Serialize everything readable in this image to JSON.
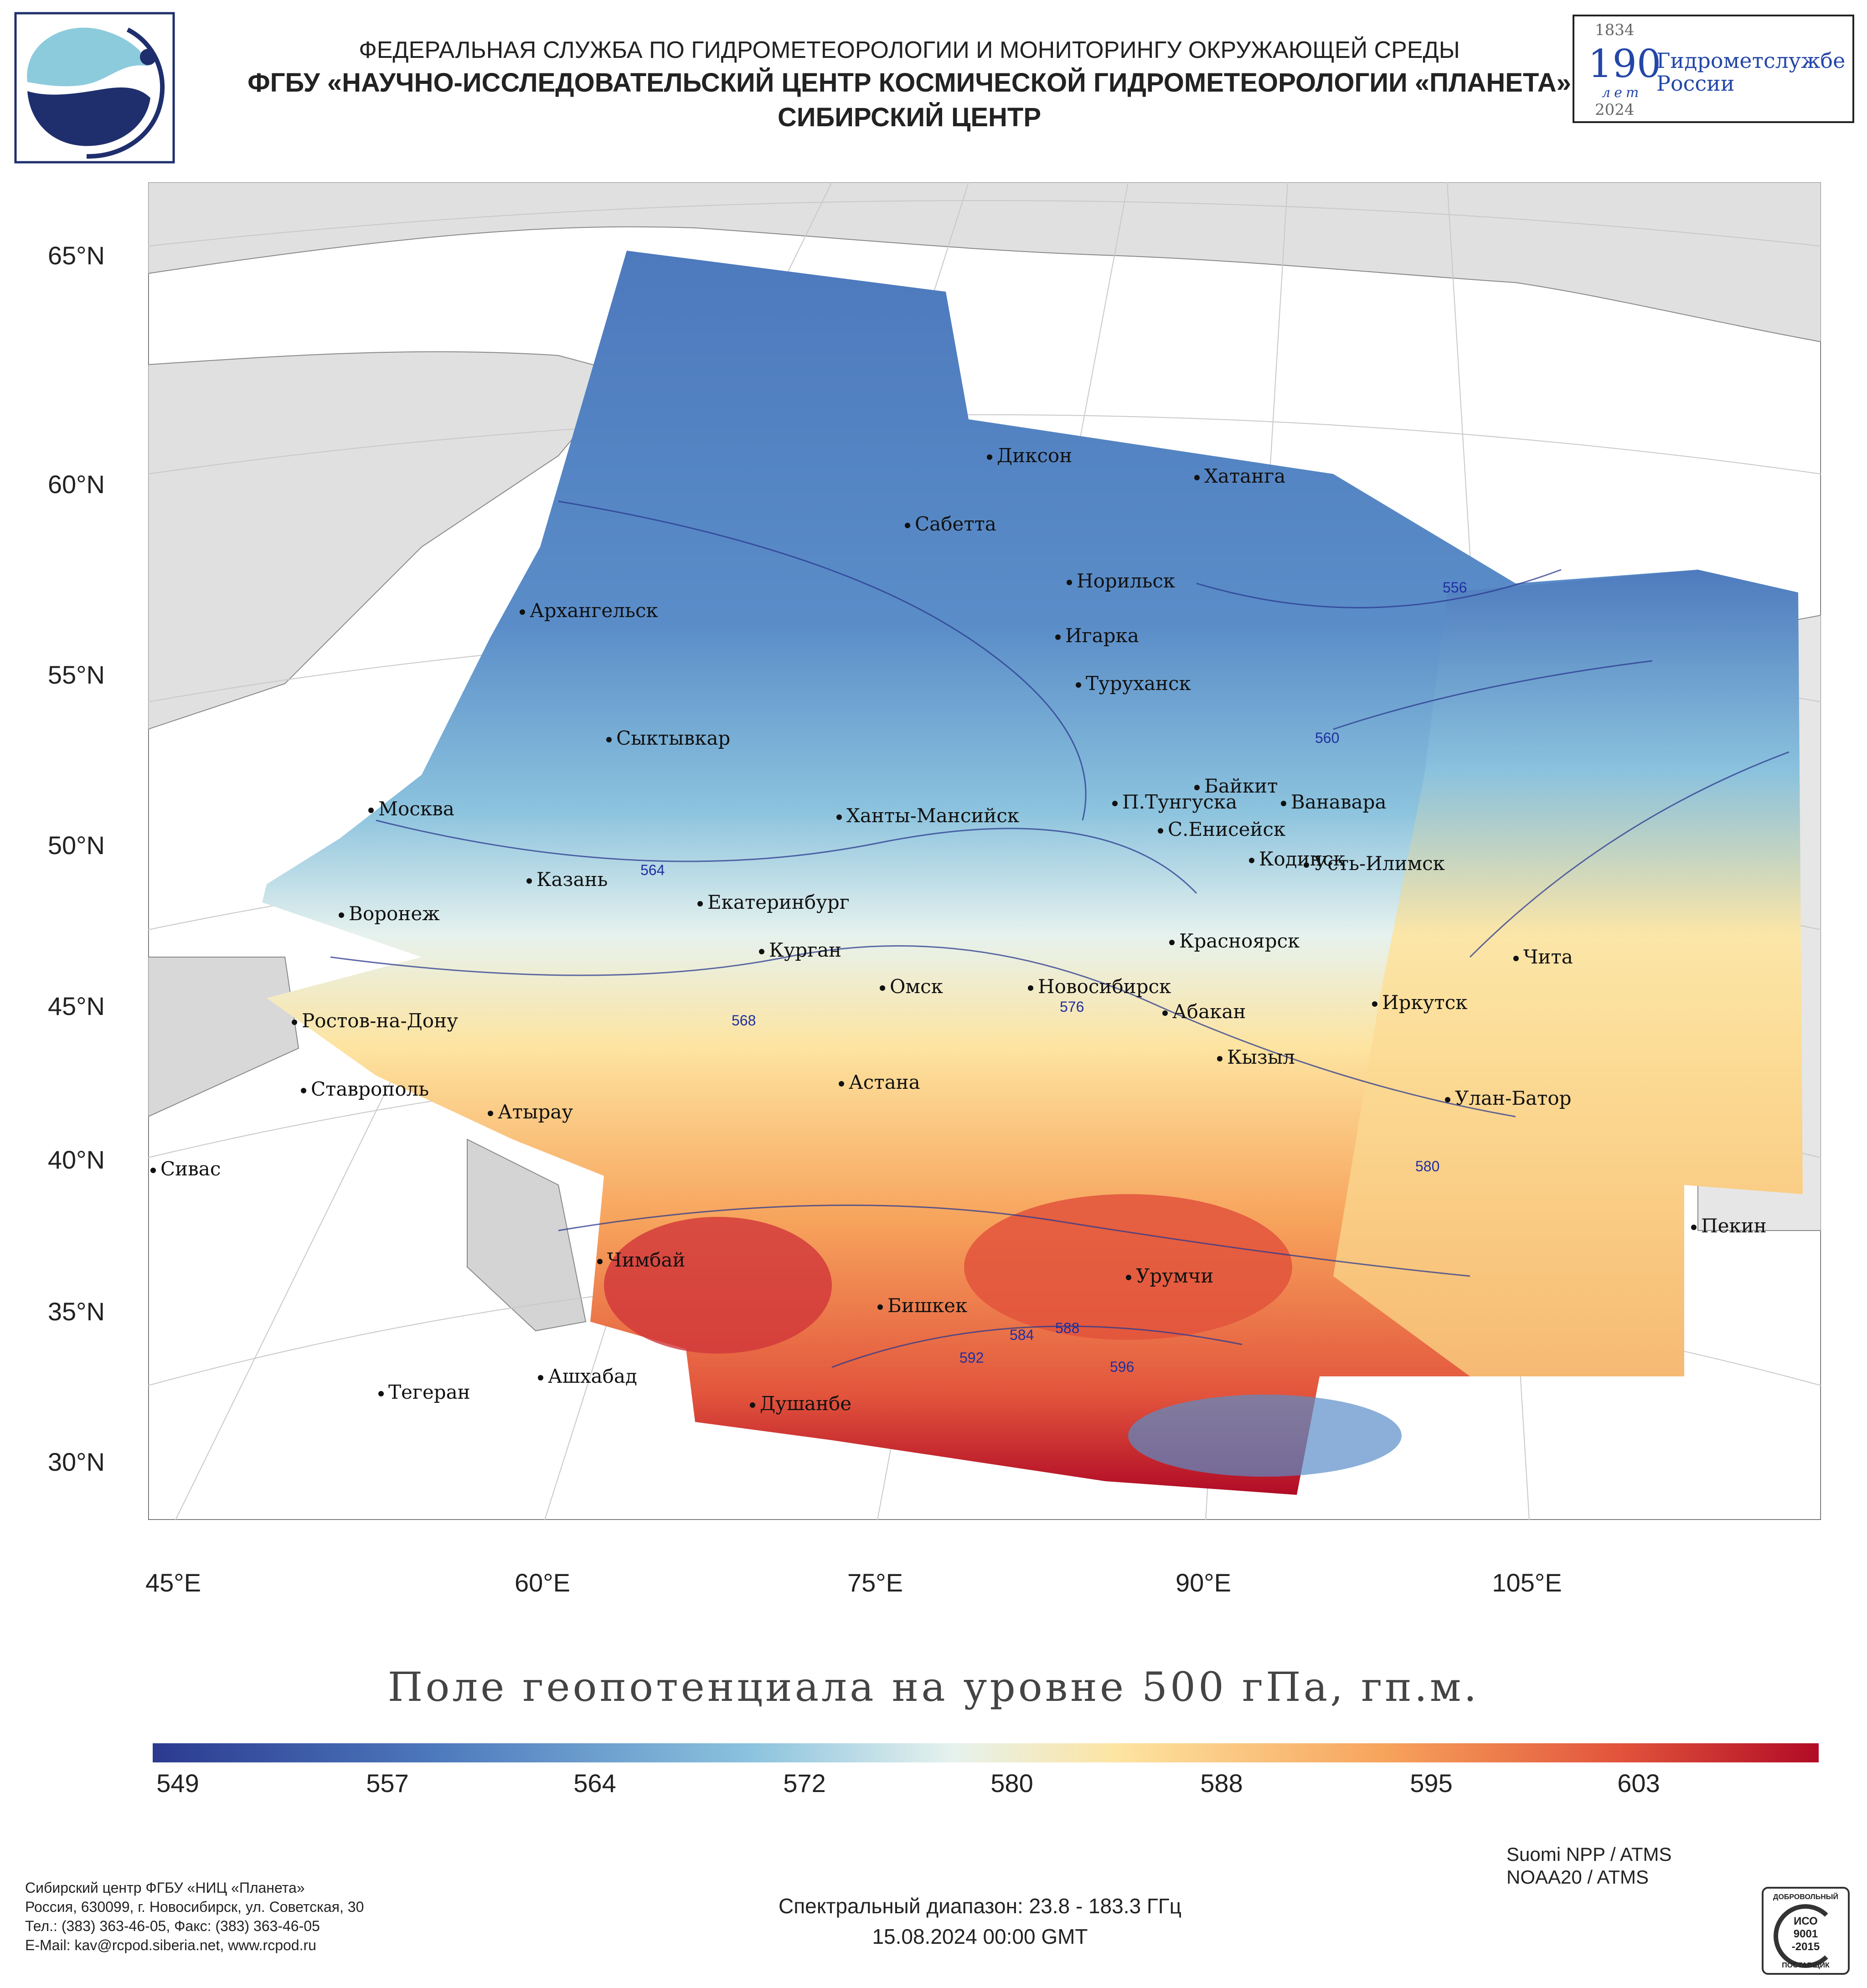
{
  "header": {
    "line1": "ФЕДЕРАЛЬНАЯ СЛУЖБА ПО ГИДРОМЕТЕОРОЛОГИИ И МОНИТОРИНГУ ОКРУЖАЮЩЕЙ СРЕДЫ",
    "line2": "ФГБУ «НАУЧНО-ИССЛЕДОВАТЕЛЬСКИЙ ЦЕНТР КОСМИЧЕСКОЙ ГИДРОМЕТЕОРОЛОГИИ «ПЛАНЕТА»",
    "line3": "СИБИРСКИЙ ЦЕНТР"
  },
  "badge": {
    "year_start": "1834",
    "number": "190",
    "years_word": "лет",
    "name_line1": "Гидрометслужбе",
    "name_line2": "России",
    "year_end": "2024"
  },
  "axes": {
    "lat_labels": [
      "65°N",
      "60°N",
      "55°N",
      "50°N",
      "45°N",
      "40°N",
      "35°N",
      "30°N"
    ],
    "lon_labels": [
      "45°E",
      "60°E",
      "75°E",
      "90°E",
      "105°E"
    ]
  },
  "cities": [
    "Диксон",
    "Хатанга",
    "Сабетта",
    "Норильск",
    "Архангельск",
    "Игарка",
    "Туруханск",
    "Сыктывкар",
    "Байкит",
    "Москва",
    "П.Тунгуска",
    "Ванавара",
    "Ханты-Мансийск",
    "С.Енисейск",
    "Кодинск",
    "Усть-Илимск",
    "Казань",
    "Екатеринбург",
    "Воронеж",
    "Красноярск",
    "Курган",
    "Чита",
    "Омск",
    "Новосибирск",
    "Иркутск",
    "Абакан",
    "Ростов-на-Дону",
    "Кызыл",
    "Астана",
    "Улан-Батор",
    "Ставрополь",
    "Атырау",
    "Сивас",
    "Пекин",
    "Чимбай",
    "Урумчи",
    "Бишкек",
    "Ашхабад",
    "Тегеран",
    "Душанбе"
  ],
  "contour_labels": [
    "556",
    "560",
    "564",
    "568",
    "576",
    "580",
    "584",
    "588",
    "592",
    "596"
  ],
  "title": "Поле геопотенциала на уровне 500 гПа, гп.м.",
  "colorbar": {
    "ticks": [
      "549",
      "557",
      "564",
      "572",
      "580",
      "588",
      "595",
      "603"
    ],
    "stops": [
      "#2b3a8f",
      "#4d79bd",
      "#8cc3de",
      "#e6f2ee",
      "#fde4a0",
      "#f7a35c",
      "#e2543c",
      "#b10b26"
    ]
  },
  "satellites": [
    "Suomi NPP / ATMS",
    "NOAA20 / ATMS"
  ],
  "spectral": "Спектральный диапазон: 23.8 - 183.3 ГГц",
  "datetime": "15.08.2024 00:00 GMT",
  "footer": {
    "org": "Сибирский центр ФГБУ «НИЦ «Планета»",
    "address": "Россия, 630099, г. Новосибирск, ул. Советская, 30",
    "phone": "Тел.: (383) 363-46-05, Факс: (383) 363-46-05",
    "email": "E-Mail: kav@rcpod.siberia.net, www.rcpod.ru"
  },
  "iso": {
    "top": "ДОБРОВОЛЬНЫЙ",
    "line1": "ИСО",
    "line2": "9001",
    "line3": "-2015",
    "bottom": "ПОСТАВЩИК"
  }
}
